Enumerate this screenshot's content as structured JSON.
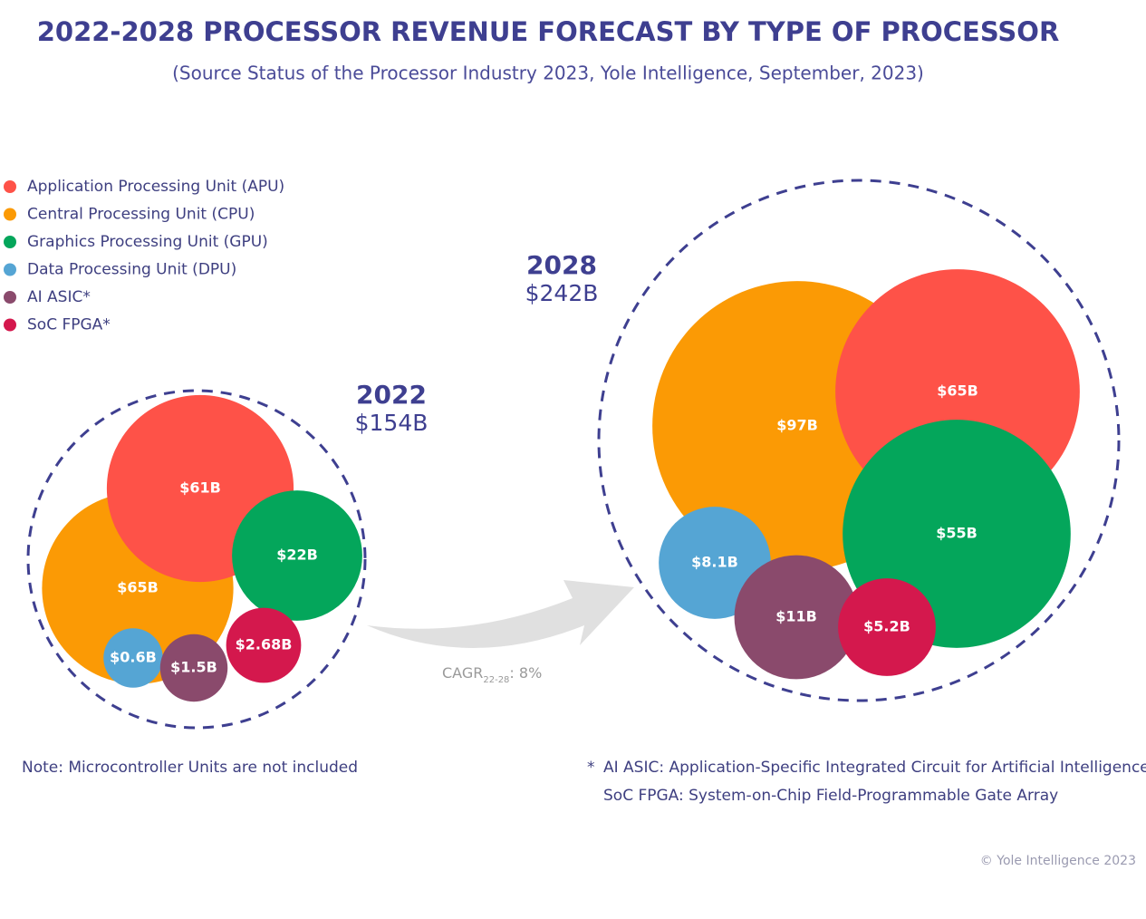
{
  "chart_data": {
    "type": "bubble",
    "title": "2022-2028 PROCESSOR REVENUE FORECAST BY TYPE OF PROCESSOR",
    "subtitle": "(Source Status of the Processor Industry 2023, Yole Intelligence, September, 2023)",
    "categories": [
      "2022",
      "2028"
    ],
    "totals": [
      154,
      242
    ],
    "total_labels": [
      "$154B",
      "$242B"
    ],
    "legend": "upper left",
    "series": [
      {
        "name": "Application Processing Unit (APU)",
        "color": "#fe5248",
        "values": [
          61,
          65
        ],
        "value_labels": [
          "$61B",
          "$65B"
        ]
      },
      {
        "name": "Central Processing Unit (CPU)",
        "color": "#fb9a05",
        "values": [
          65,
          97
        ],
        "value_labels": [
          "$65B",
          "$97B"
        ]
      },
      {
        "name": "Graphics Processing Unit (GPU)",
        "color": "#04a65b",
        "values": [
          22,
          55
        ],
        "value_labels": [
          "$22B",
          "$55B"
        ]
      },
      {
        "name": "Data Processing Unit (DPU)",
        "color": "#55a5d4",
        "values": [
          0.6,
          8.1
        ],
        "value_labels": [
          "$0.6B",
          "$8.1B"
        ]
      },
      {
        "name": "AI ASIC*",
        "color": "#8a4a6c",
        "values": [
          1.5,
          11
        ],
        "value_labels": [
          "$1.5B",
          "$11B"
        ]
      },
      {
        "name": "SoC FPGA*",
        "color": "#d4184d",
        "values": [
          2.68,
          5.2
        ],
        "value_labels": [
          "$2.68B",
          "$5.2B"
        ]
      }
    ],
    "cagr": {
      "label": "CAGR",
      "period": "22-28",
      "value": 8,
      "value_label": ": 8%"
    },
    "note": "Note: Microcontroller Units are not included",
    "footnote_marker": "*",
    "footnotes": [
      "AI ASIC: Application-Specific Integrated Circuit for Artificial Intelligence",
      "SoC FPGA: System-on-Chip Field-Programmable Gate Array"
    ],
    "credit": "© Yole Intelligence 2023"
  }
}
